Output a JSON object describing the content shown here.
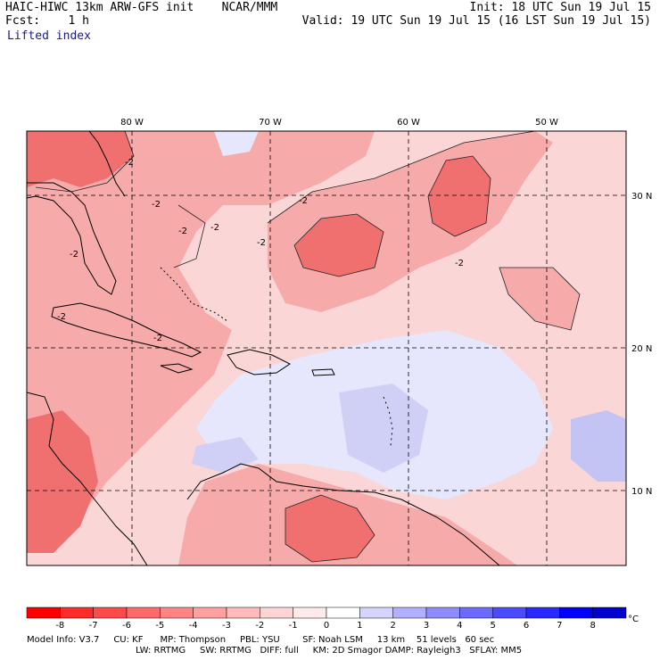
{
  "header": {
    "title": "HAIC-HIWC 13km ARW-GFS init    NCAR/MMM",
    "fcst_label": "Fcst:",
    "fcst_value": "1 h",
    "field": "Lifted index",
    "init": "Init: 18 UTC Sun 19 Jul 15",
    "valid": "Valid: 19 UTC Sun 19 Jul 15 (16 LST Sun 19 Jul 15)"
  },
  "map": {
    "lon_labels": [
      "80 W",
      "70 W",
      "60 W",
      "50 W"
    ],
    "lat_labels": [
      "30 N",
      "20 N",
      "10 N"
    ],
    "contour_label": "-2",
    "colors": {
      "strong_neg": "#f05a5a",
      "mid_neg": "#f4a0a0",
      "weak_neg": "#fbd6d6",
      "neutral": "#ffffff",
      "weak_pos": "#dcdcfa",
      "mid_pos": "#b4b4f0"
    }
  },
  "colorbar": {
    "levels": [
      "-8",
      "-7",
      "-6",
      "-5",
      "-4",
      "-3",
      "-2",
      "-1",
      "0",
      "1",
      "2",
      "3",
      "4",
      "5",
      "6",
      "7",
      "8"
    ],
    "unit": "°C",
    "colors": [
      "#ff0000",
      "#ff2a2a",
      "#ff4a4a",
      "#ff6a6a",
      "#ff8585",
      "#ffa0a0",
      "#ffbaba",
      "#ffd4d4",
      "#ffeaea",
      "#ffffff",
      "#d4d4ff",
      "#b0b0ff",
      "#8c8cff",
      "#6a6aff",
      "#4a4aff",
      "#2828ff",
      "#0000ff",
      "#0000d0"
    ]
  },
  "footer": {
    "line1": "Model Info: V3.7     CU: KF      MP: Thompson     PBL: YSU        SF: Noah LSM     13 km    51 levels   60 sec",
    "line2": "LW: RRTMG     SW: RRTMG   DIFF: full     KM: 2D Smagor DAMP: Rayleigh3   SFLAY: MM5"
  }
}
